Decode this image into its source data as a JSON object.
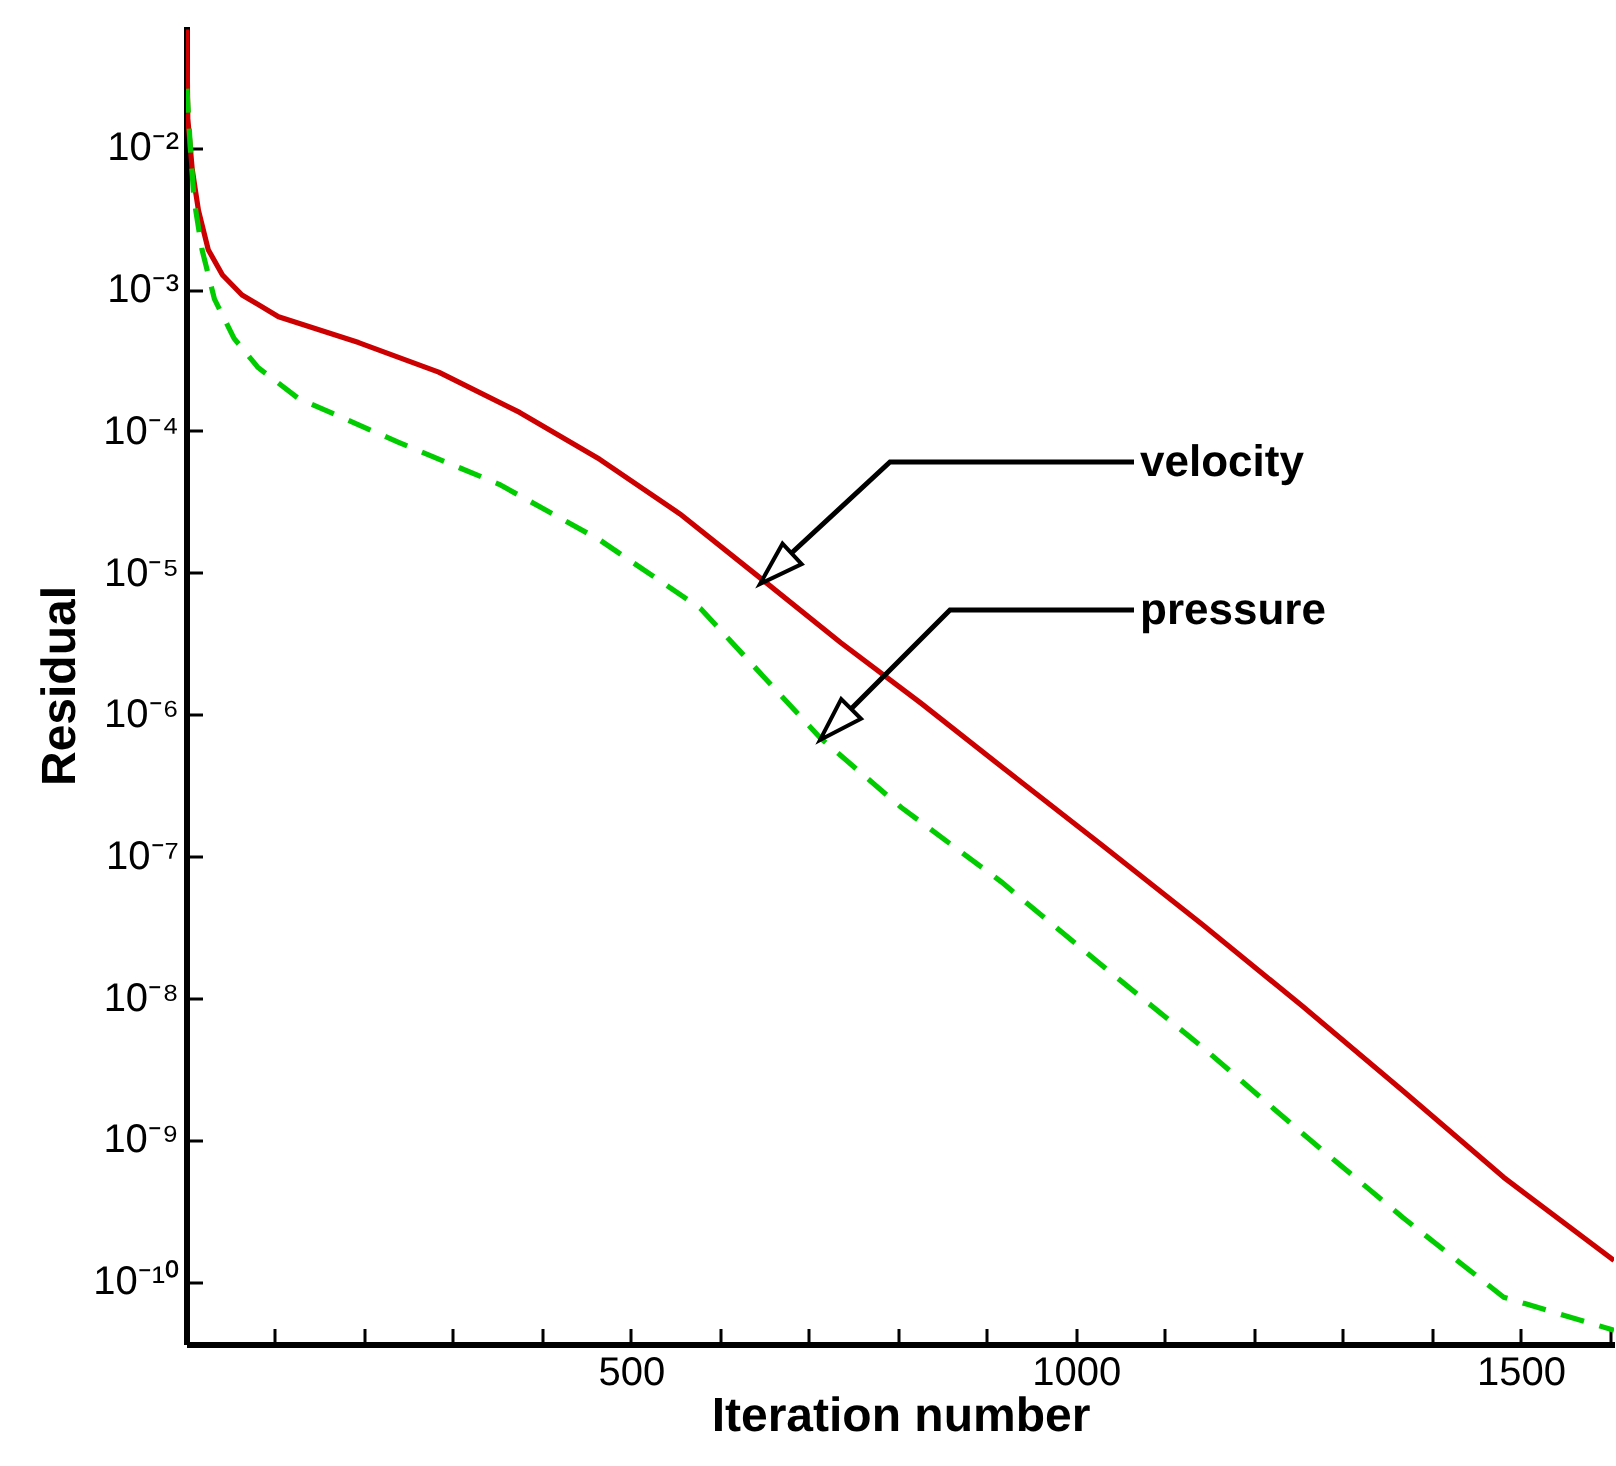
{
  "chart_data": {
    "type": "line",
    "xlabel": "Iteration number",
    "ylabel": "Residual",
    "log": "y",
    "grid": false,
    "xlim": [
      0,
      1605
    ],
    "ylim": [
      3.6e-11,
      0.072
    ],
    "xticks": [
      {
        "value": 100,
        "label": null
      },
      {
        "value": 200,
        "label": null
      },
      {
        "value": 300,
        "label": null
      },
      {
        "value": 400,
        "label": null
      },
      500,
      {
        "value": 600,
        "label": null
      },
      {
        "value": 700,
        "label": null
      },
      {
        "value": 800,
        "label": null
      },
      {
        "value": 900,
        "label": null
      },
      1000,
      {
        "value": 1100,
        "label": null
      },
      {
        "value": 1200,
        "label": null
      },
      {
        "value": 1300,
        "label": null
      },
      {
        "value": 1400,
        "label": null
      },
      1500,
      {
        "value": 1600,
        "label": null
      }
    ],
    "yticks": [
      {
        "value": 1e-10,
        "label": "10⁻¹⁰"
      },
      {
        "value": 1e-09,
        "label": "10⁻⁹"
      },
      {
        "value": 1e-08,
        "label": "10⁻⁸"
      },
      {
        "value": 1e-07,
        "label": "10⁻⁷"
      },
      {
        "value": 1e-06,
        "label": "10⁻⁶"
      },
      {
        "value": 1e-05,
        "label": "10⁻⁵"
      },
      {
        "value": 0.0001,
        "label": "10⁻⁴"
      },
      {
        "value": 0.001,
        "label": "10⁻³"
      },
      {
        "value": 0.01,
        "label": "10⁻²"
      }
    ],
    "series": [
      {
        "color": "#cc0000",
        "line_style": "solid",
        "x": [
          1,
          2,
          7,
          14,
          25,
          41,
          63,
          104,
          194,
          284,
          375,
          465,
          555,
          646,
          736,
          826,
          916,
          1029,
          1142,
          1255,
          1368,
          1481,
          1605
        ],
        "values": [
          0.068,
          0.016,
          0.007,
          0.0036,
          0.0019,
          0.00126,
          0.00091,
          0.00064,
          0.00042,
          0.00026,
          0.000135,
          6.3e-05,
          2.6e-05,
          9.1e-06,
          3.2e-06,
          1.2e-06,
          4.3e-07,
          1.2e-07,
          3.3e-08,
          8.7e-09,
          2.2e-09,
          5.4e-10,
          1.4e-10
        ]
      },
      {
        "color": "#00cc00",
        "line_style": "dashed",
        "x": [
          1,
          5,
          9,
          18,
          32,
          54,
          81,
          126,
          239,
          352,
          465,
          578,
          713,
          804,
          916,
          1029,
          1142,
          1255,
          1368,
          1481,
          1605
        ],
        "values": [
          0.026,
          0.0098,
          0.0043,
          0.0019,
          0.00085,
          0.00045,
          0.00028,
          0.00017,
          8.3e-05,
          4.2e-05,
          1.7e-05,
          5.6e-06,
          6.8e-07,
          2.2e-07,
          6.6e-08,
          1.7e-08,
          4.5e-09,
          1.1e-09,
          2.8e-10,
          7.7e-11,
          4.5e-11
        ]
      }
    ],
    "annotations": [
      "velocity",
      "pressure"
    ]
  }
}
